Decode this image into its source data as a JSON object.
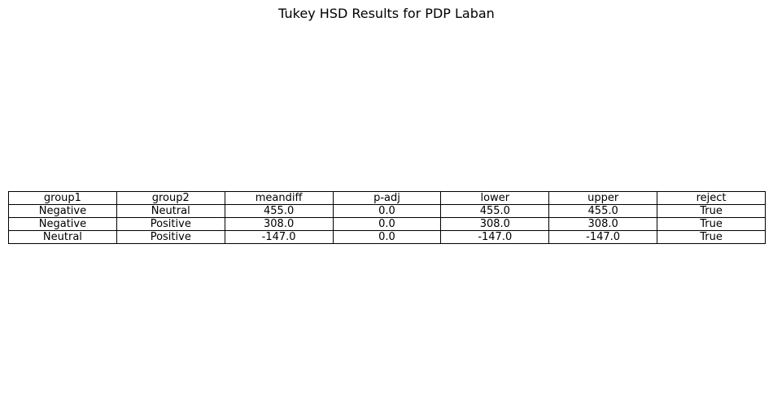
{
  "chart_data": {
    "type": "table",
    "title": "Tukey HSD Results for PDP Laban",
    "columns": [
      "group1",
      "group2",
      "meandiff",
      "p-adj",
      "lower",
      "upper",
      "reject"
    ],
    "rows": [
      [
        "Negative",
        "Neutral",
        "455.0",
        "0.0",
        "455.0",
        "455.0",
        "True"
      ],
      [
        "Negative",
        "Positive",
        "308.0",
        "0.0",
        "308.0",
        "308.0",
        "True"
      ],
      [
        "Neutral",
        "Positive",
        "-147.0",
        "0.0",
        "-147.0",
        "-147.0",
        "True"
      ]
    ]
  }
}
